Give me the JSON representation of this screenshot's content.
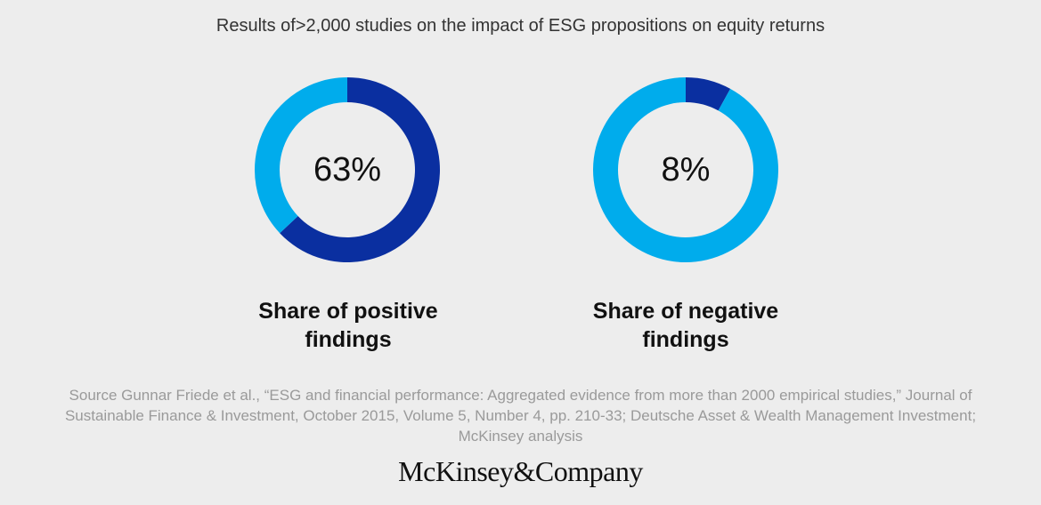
{
  "title": "Results of>2,000 studies on the impact of ESG propositions on equity returns",
  "colors": {
    "highlight": "#0a2fa0",
    "remainder": "#00acec",
    "background": "#ededed"
  },
  "chart_data": [
    {
      "type": "pie",
      "variant": "donut",
      "value_percent": 63,
      "center_label": "63%",
      "label": "Share of positive findings",
      "start": "top",
      "direction": "clockwise"
    },
    {
      "type": "pie",
      "variant": "donut",
      "value_percent": 8,
      "center_label": "8%",
      "label": "Share of negative findings",
      "start": "top",
      "direction": "clockwise"
    }
  ],
  "source": "Source Gunnar Friede et al., “ESG and financial performance: Aggregated evidence from more than 2000 empirical studies,” Journal of Sustainable Finance & Investment, October 2015, Volume 5, Number 4, pp. 210-33; Deutsche Asset & Wealth Management Investment; McKinsey analysis",
  "logo": "McKinsey&Company"
}
